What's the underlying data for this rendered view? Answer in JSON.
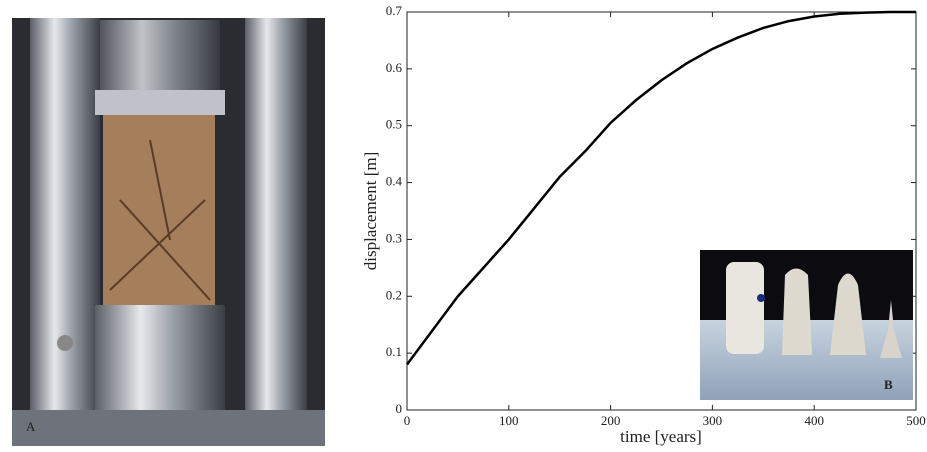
{
  "chart_data": {
    "type": "line",
    "xlabel": "time [years]",
    "ylabel": "displacement [m]",
    "annotations": [
      "A",
      "B"
    ],
    "x": [
      0,
      25,
      50,
      75,
      100,
      125,
      150,
      175,
      200,
      225,
      250,
      275,
      300,
      325,
      350,
      375,
      400,
      425,
      450,
      475,
      500
    ],
    "series": [
      {
        "color": "#000000",
        "values": [
          0.08,
          0.14,
          0.2,
          0.25,
          0.3,
          0.355,
          0.41,
          0.455,
          0.505,
          0.545,
          0.58,
          0.61,
          0.635,
          0.655,
          0.672,
          0.684,
          0.692,
          0.697,
          0.699,
          0.7,
          0.7
        ]
      }
    ],
    "xlim": [
      0,
      500
    ],
    "xticks": [
      0,
      100,
      200,
      300,
      400,
      500
    ],
    "ylim": [
      0,
      0.7
    ],
    "yticks": [
      0,
      0.1,
      0.2,
      0.3,
      0.4,
      0.5,
      0.6,
      0.7
    ]
  }
}
